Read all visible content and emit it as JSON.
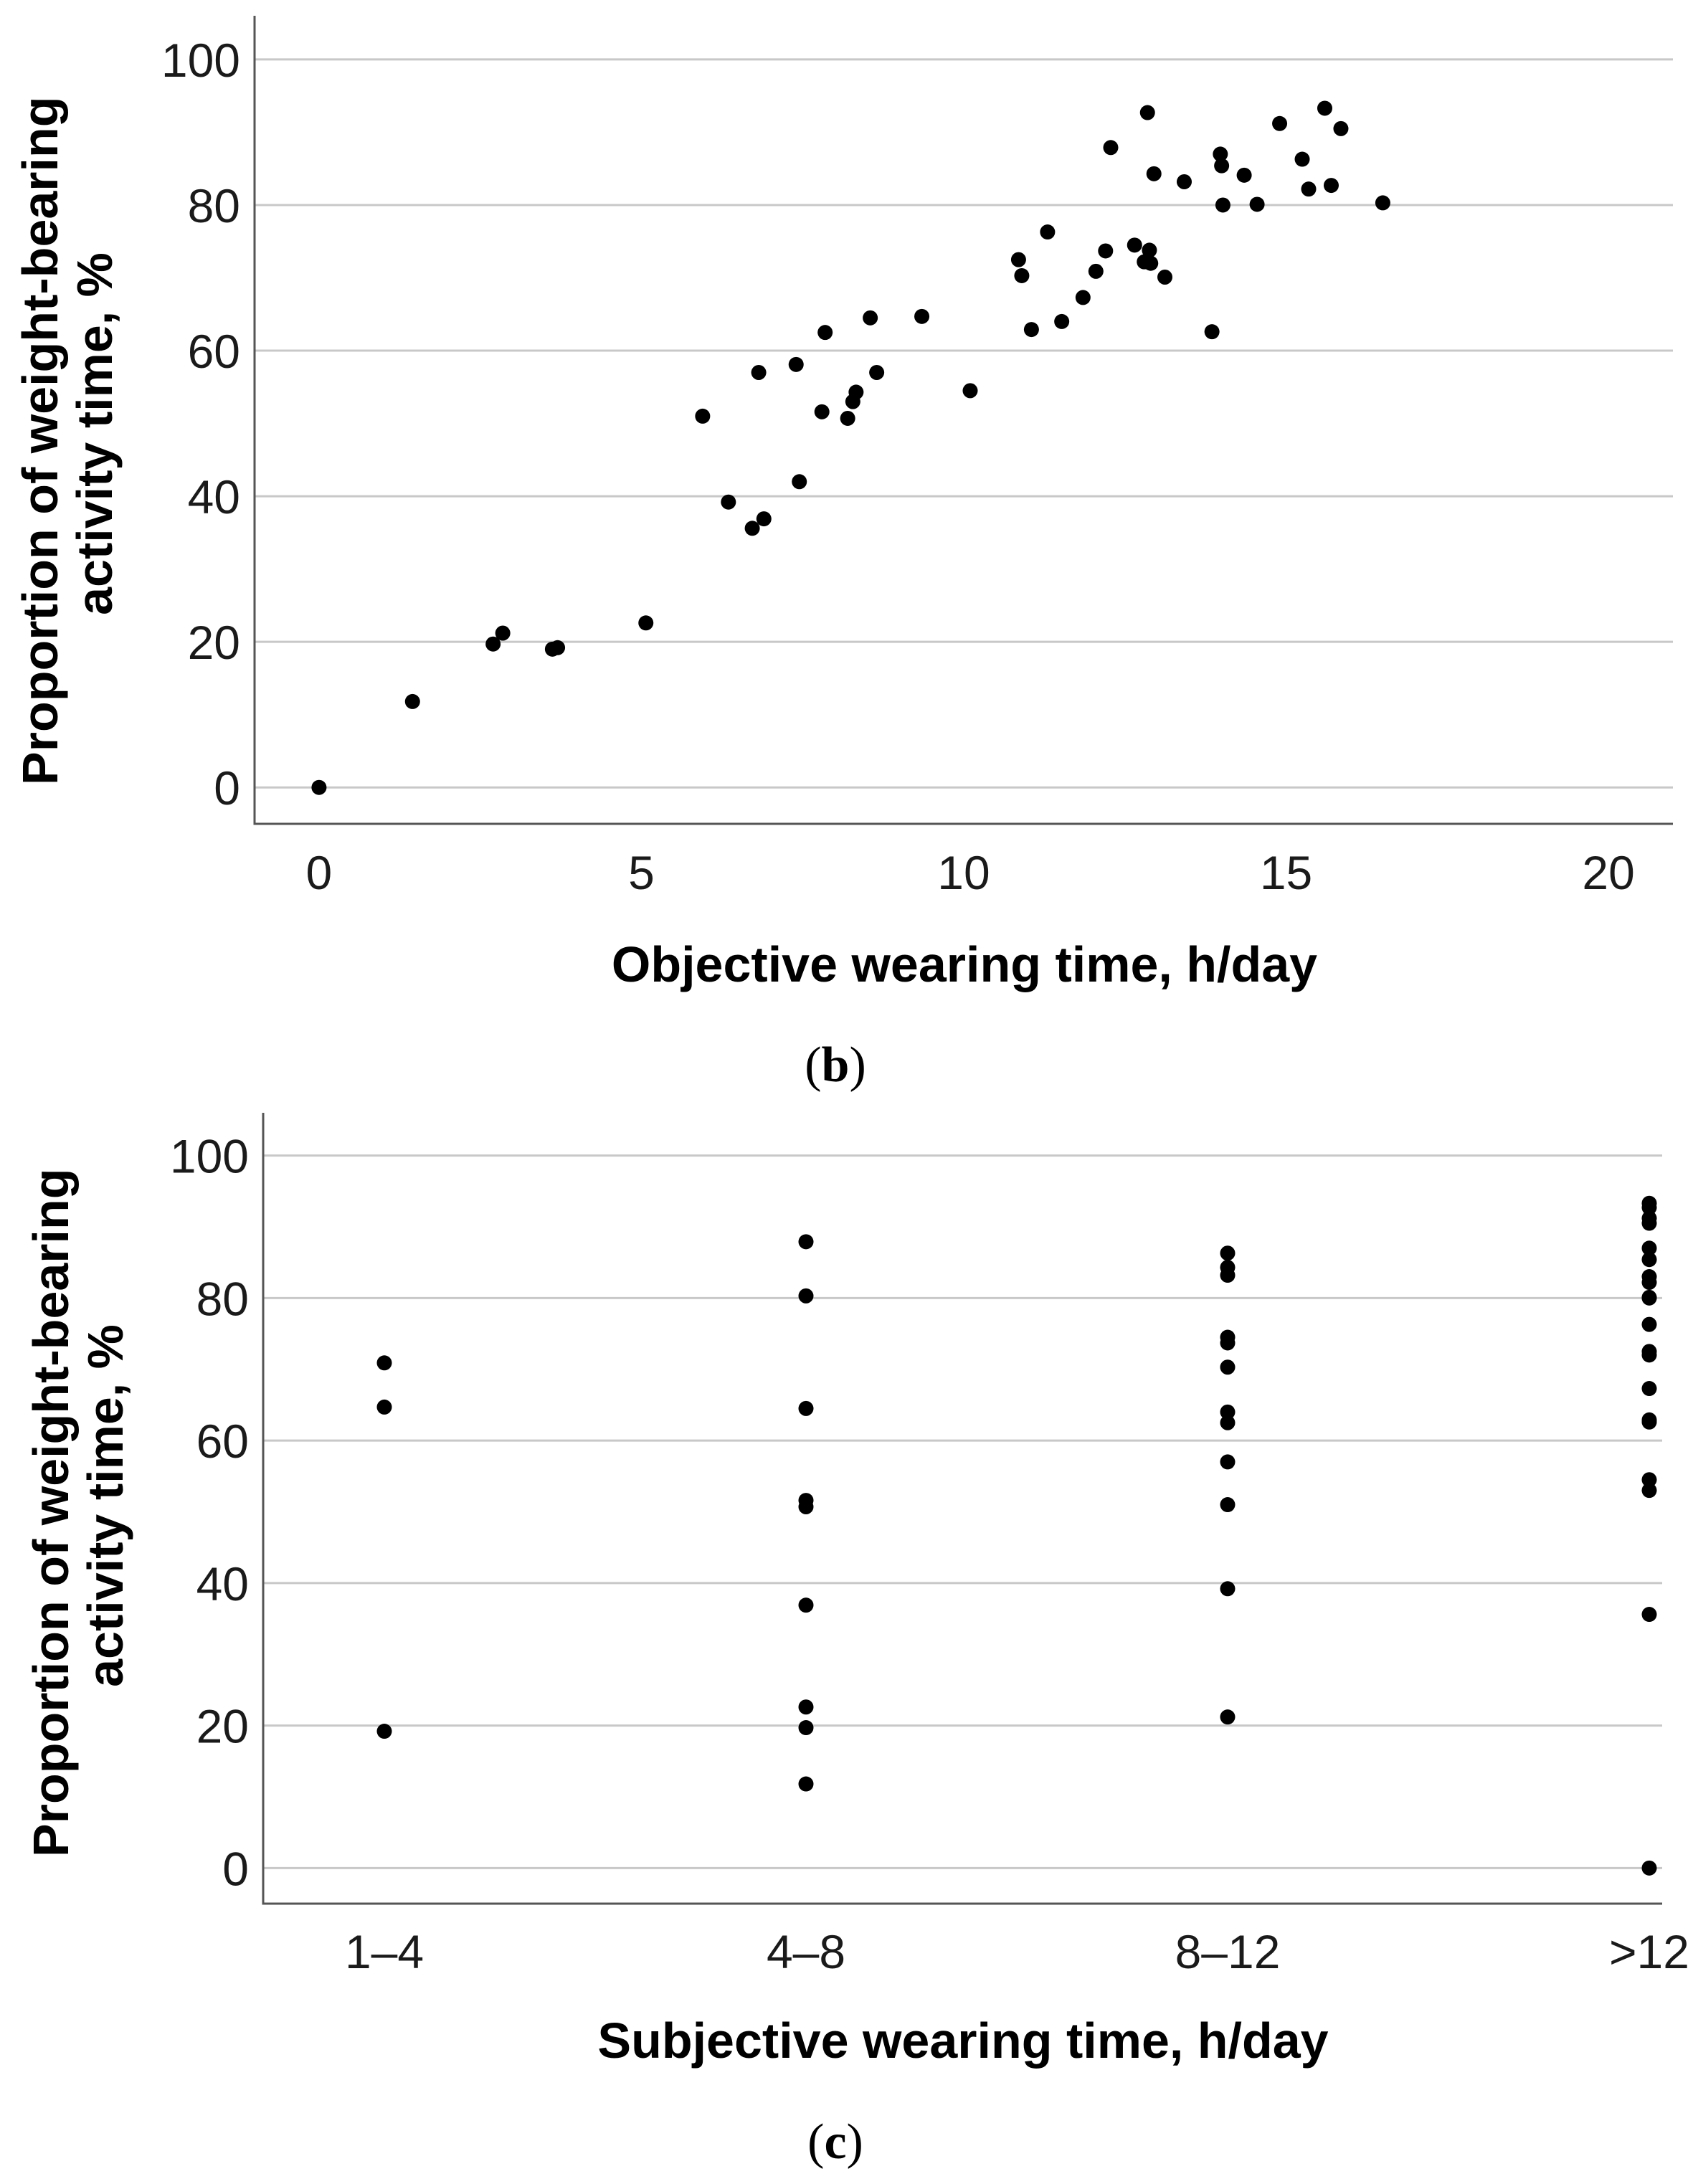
{
  "chart_data": [
    {
      "type": "scatter",
      "panel_label": "b",
      "xlabel": "Objective wearing time, h/day",
      "ylabel_line1": "Proportion of weight-bearing",
      "ylabel_line2": "activity time, %",
      "xlim": [
        -1,
        21
      ],
      "ylim": [
        -5,
        106
      ],
      "xticks": [
        0,
        5,
        10,
        15,
        20
      ],
      "yticks": [
        0,
        20,
        40,
        60,
        80,
        100
      ],
      "grid": "horizontal",
      "points": [
        [
          0,
          0
        ],
        [
          1.45,
          11.8
        ],
        [
          2.7,
          19.7
        ],
        [
          2.85,
          21.2
        ],
        [
          3.62,
          19.0
        ],
        [
          3.7,
          19.2
        ],
        [
          5.07,
          22.6
        ],
        [
          5.95,
          51.0
        ],
        [
          6.35,
          39.2
        ],
        [
          6.72,
          35.6
        ],
        [
          6.82,
          57.0
        ],
        [
          6.9,
          36.9
        ],
        [
          7.4,
          58.1
        ],
        [
          7.45,
          42.0
        ],
        [
          7.8,
          51.6
        ],
        [
          7.85,
          62.5
        ],
        [
          8.2,
          50.7
        ],
        [
          8.28,
          53.0
        ],
        [
          8.33,
          54.3
        ],
        [
          8.55,
          64.5
        ],
        [
          8.65,
          57.0
        ],
        [
          9.35,
          64.7
        ],
        [
          10.1,
          54.5
        ],
        [
          10.85,
          72.5
        ],
        [
          10.9,
          70.3
        ],
        [
          11.05,
          62.9
        ],
        [
          11.3,
          76.3
        ],
        [
          11.52,
          64.0
        ],
        [
          11.85,
          67.3
        ],
        [
          12.05,
          70.9
        ],
        [
          12.2,
          73.7
        ],
        [
          12.28,
          87.9
        ],
        [
          12.65,
          74.5
        ],
        [
          12.8,
          72.2
        ],
        [
          12.85,
          92.7
        ],
        [
          12.88,
          73.8
        ],
        [
          12.9,
          72.0
        ],
        [
          12.95,
          84.3
        ],
        [
          13.12,
          70.1
        ],
        [
          13.42,
          83.2
        ],
        [
          13.85,
          62.6
        ],
        [
          13.98,
          87.0
        ],
        [
          14.0,
          85.4
        ],
        [
          14.02,
          80.0
        ],
        [
          14.35,
          84.1
        ],
        [
          14.55,
          80.1
        ],
        [
          14.9,
          91.2
        ],
        [
          15.25,
          86.3
        ],
        [
          15.35,
          82.2
        ],
        [
          15.6,
          93.3
        ],
        [
          15.7,
          82.7
        ],
        [
          15.85,
          90.5
        ],
        [
          16.5,
          80.3
        ]
      ]
    },
    {
      "type": "scatter",
      "panel_label": "c",
      "xlabel": "Subjective wearing time, h/day",
      "ylabel_line1": "Proportion of weight-bearing",
      "ylabel_line2": "activity time, %",
      "categories": [
        "1–4",
        "4–8",
        "8–12",
        ">12"
      ],
      "ylim": [
        -5,
        106
      ],
      "yticks": [
        0,
        20,
        40,
        60,
        80,
        100
      ],
      "grid": "horizontal",
      "series": [
        {
          "name": "1–4",
          "values": [
            70.9,
            64.7,
            19.2
          ]
        },
        {
          "name": "4–8",
          "values": [
            87.9,
            80.3,
            64.5,
            51.6,
            50.7,
            36.9,
            22.6,
            19.7,
            11.8
          ]
        },
        {
          "name": "8–12",
          "values": [
            86.3,
            84.3,
            83.2,
            74.5,
            73.7,
            70.3,
            64.0,
            62.5,
            57.0,
            51.0,
            39.2,
            21.2
          ]
        },
        {
          "name": ">12",
          "values": [
            93.3,
            92.7,
            91.2,
            90.5,
            87.0,
            85.4,
            83.0,
            82.2,
            80.1,
            80.0,
            76.3,
            72.5,
            72.0,
            67.3,
            62.9,
            62.6,
            54.5,
            53.0,
            35.6,
            0
          ]
        }
      ]
    }
  ]
}
